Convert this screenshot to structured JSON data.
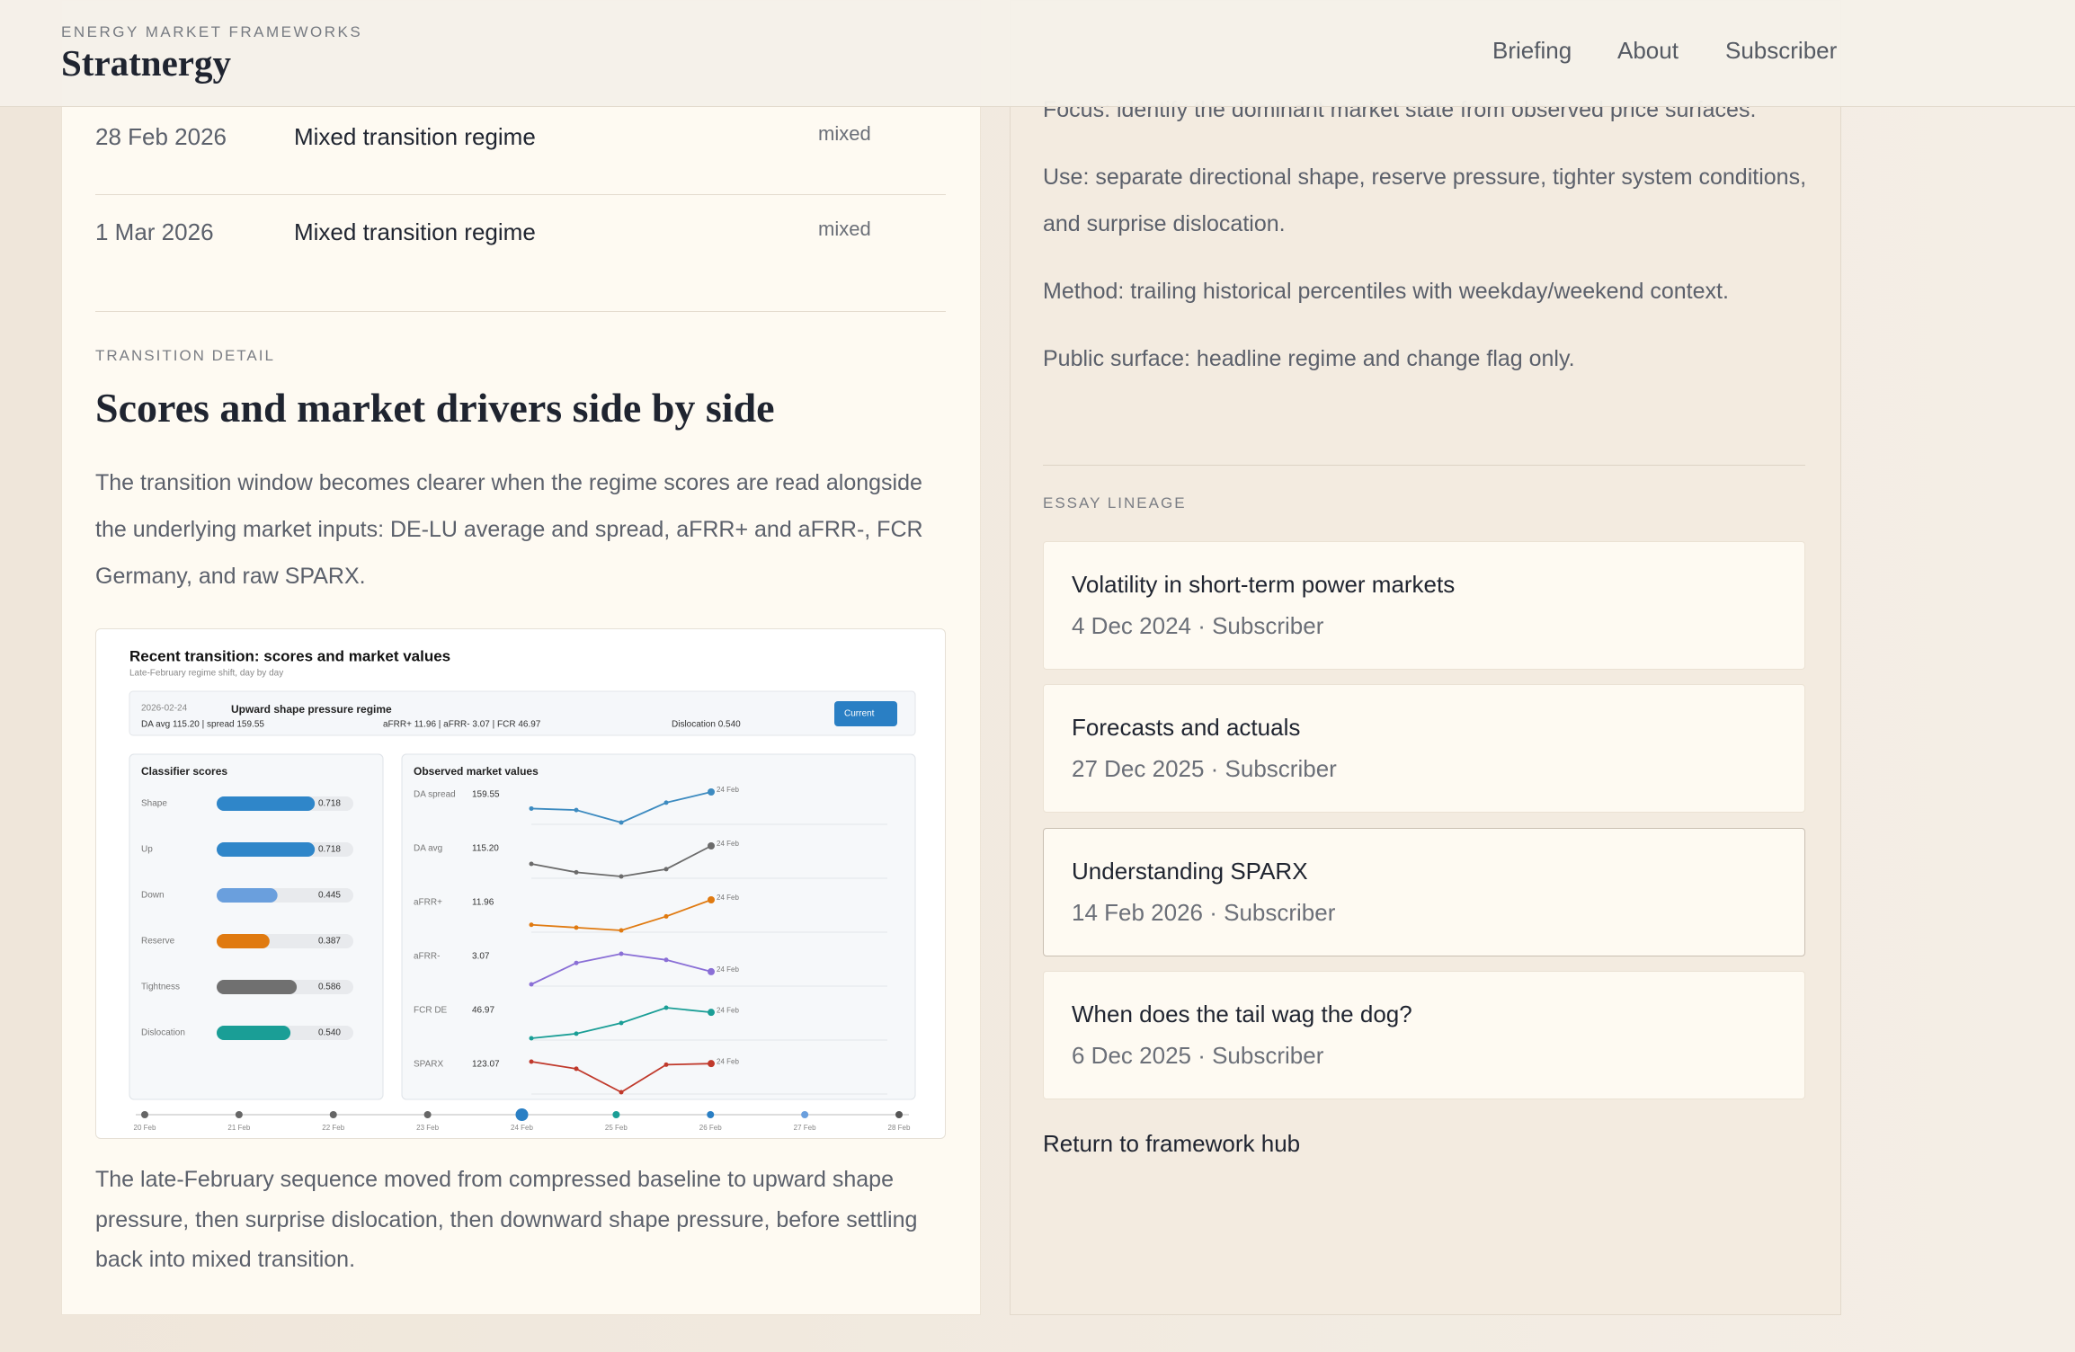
{
  "header": {
    "eyebrow": "ENERGY MARKET FRAMEWORKS",
    "brand": "Stratnergy",
    "nav": [
      "Briefing",
      "About",
      "Subscriber"
    ]
  },
  "regime_rows": [
    {
      "date": "28 Feb 2026",
      "regime": "Mixed transition regime",
      "tag": "mixed"
    },
    {
      "date": "1 Mar 2026",
      "regime": "Mixed transition regime",
      "tag": "mixed"
    }
  ],
  "detail": {
    "eyebrow": "TRANSITION DETAIL",
    "heading": "Scores and market drivers side by side",
    "intro": "The transition window becomes clearer when the regime scores are read alongside the underlying market inputs: DE-LU average and spread, aFRR+ and aFRR-, FCR Germany, and raw SPARX.",
    "caption": "The late-February sequence moved from compressed baseline to upward shape pressure, then surprise dislocation, then downward shape pressure, before settling back into mixed transition."
  },
  "figure": {
    "title": "Recent transition: scores and market values",
    "subtitle": "Late-February regime shift, day by day",
    "banner": {
      "date": "2026-02-24",
      "regime": "Upward shape pressure regime",
      "inputs": "DA avg 115.20 | spread 159.55",
      "reserves": "aFRR+ 11.96 | aFRR- 3.07 | FCR 46.97",
      "dislocation": "Dislocation 0.540",
      "button": "Current"
    },
    "scores": {
      "title": "Classifier scores",
      "xlim": [
        0,
        1
      ],
      "rows": [
        {
          "name": "Shape",
          "value": 0.718,
          "value_label": "0.718",
          "color": "#2f86c9"
        },
        {
          "name": "Up",
          "value": 0.718,
          "value_label": "0.718",
          "color": "#2f86c9"
        },
        {
          "name": "Down",
          "value": 0.445,
          "value_label": "0.445",
          "color": "#6a9fdd"
        },
        {
          "name": "Reserve",
          "value": 0.387,
          "value_label": "0.387",
          "color": "#e07a10"
        },
        {
          "name": "Tightness",
          "value": 0.586,
          "value_label": "0.586",
          "color": "#707070"
        },
        {
          "name": "Dislocation",
          "value": 0.54,
          "value_label": "0.540",
          "color": "#1a9e96"
        }
      ]
    },
    "markets": {
      "title": "Observed market values",
      "end_label": "24 Feb",
      "series": [
        {
          "name": "DA spread",
          "color": "#3d8bc0",
          "values": [
            137,
            135,
            118,
            145,
            159.55
          ],
          "value_label": "159.55"
        },
        {
          "name": "DA avg",
          "color": "#6b6b6b",
          "values": [
            98,
            90,
            86,
            93,
            115.2
          ],
          "value_label": "115.20"
        },
        {
          "name": "aFRR+",
          "color": "#e07a10",
          "values": [
            7.5,
            7.0,
            6.5,
            9.0,
            11.96
          ],
          "value_label": "11.96"
        },
        {
          "name": "aFRR-",
          "color": "#8a6fd6",
          "values": [
            1.0,
            4.5,
            6.0,
            5.0,
            3.07
          ],
          "value_label": "3.07"
        },
        {
          "name": "FCR DE",
          "color": "#1a9e96",
          "values": [
            30,
            33,
            40,
            50,
            46.97
          ],
          "value_label": "46.97"
        },
        {
          "name": "SPARX",
          "color": "#c0392b",
          "values": [
            125,
            118,
            95,
            122,
            123.07
          ],
          "value_label": "123.07"
        }
      ]
    },
    "timeline": {
      "dates": [
        "20 Feb",
        "21 Feb",
        "22 Feb",
        "23 Feb",
        "24 Feb",
        "25 Feb",
        "26 Feb",
        "27 Feb",
        "28 Feb"
      ],
      "colors": [
        "#666666",
        "#666666",
        "#666666",
        "#666666",
        "#2a7fc4",
        "#1a9e96",
        "#2a7fc4",
        "#6a9fdd",
        "#555555"
      ],
      "current": "24 Feb"
    }
  },
  "sidebar": {
    "notes": [
      "Focus: identify the dominant market state from observed price surfaces.",
      "Use: separate directional shape, reserve pressure, tighter system conditions, and surprise dislocation.",
      "Method: trailing historical percentiles with weekday/weekend context.",
      "Public surface: headline regime and change flag only."
    ],
    "lineage_title": "ESSAY LINEAGE",
    "essays": [
      {
        "title": "Volatility in short-term power markets",
        "meta": "4 Dec 2024 · Subscriber"
      },
      {
        "title": "Forecasts and actuals",
        "meta": "27 Dec 2025 · Subscriber"
      },
      {
        "title": "Understanding SPARX",
        "meta": "14 Feb 2026 · Subscriber"
      },
      {
        "title": "When does the tail wag the dog?",
        "meta": "6 Dec 2025 · Subscriber"
      }
    ],
    "return_link": "Return to framework hub"
  }
}
